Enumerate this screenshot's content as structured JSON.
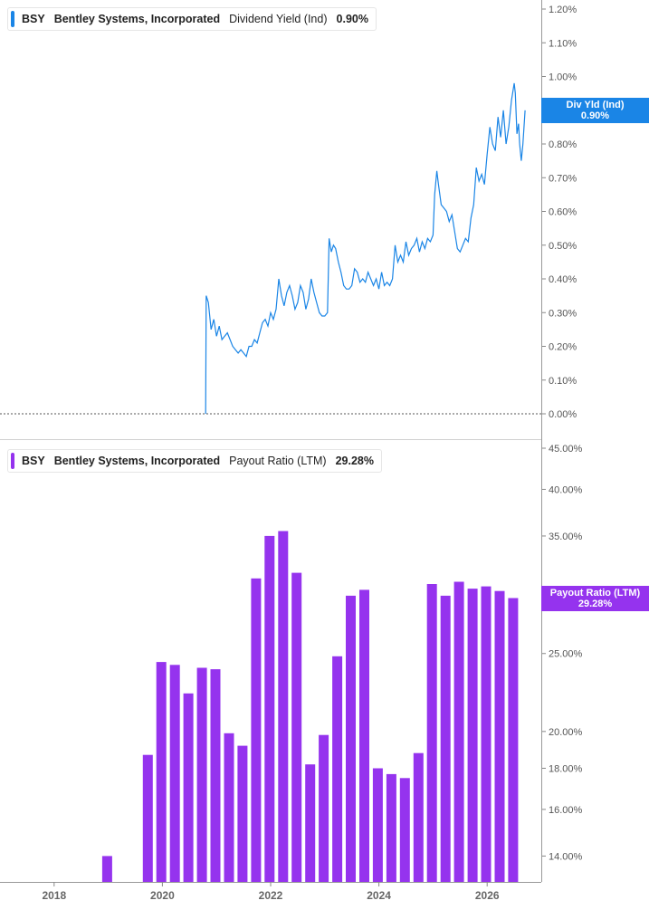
{
  "legends": {
    "top": {
      "ticker": "BSY",
      "name": "Bentley Systems, Incorporated",
      "metric": "Dividend Yield (Ind)",
      "value": "0.90%"
    },
    "bottom": {
      "ticker": "BSY",
      "name": "Bentley Systems, Incorporated",
      "metric": "Payout Ratio (LTM)",
      "value": "29.28%"
    }
  },
  "tags": {
    "top": {
      "label": "Div Yld (Ind)",
      "value": "0.90%"
    },
    "bottom": {
      "label": "Payout Ratio (LTM)",
      "value": "29.28%"
    }
  },
  "colors": {
    "line": "#1a85e6",
    "bars": "#9533ee",
    "axis": "#555555",
    "grid_zero": "#555555"
  },
  "chart_data": [
    {
      "type": "line",
      "series": [
        {
          "name": "Dividend Yield (Ind)",
          "x": [
            2020.8,
            2020.81,
            2020.85,
            2020.9,
            2020.95,
            2021.0,
            2021.05,
            2021.1,
            2021.15,
            2021.2,
            2021.25,
            2021.3,
            2021.35,
            2021.4,
            2021.45,
            2021.5,
            2021.55,
            2021.6,
            2021.65,
            2021.7,
            2021.75,
            2021.8,
            2021.85,
            2021.9,
            2021.95,
            2022.0,
            2022.05,
            2022.1,
            2022.15,
            2022.2,
            2022.25,
            2022.3,
            2022.35,
            2022.4,
            2022.45,
            2022.5,
            2022.55,
            2022.6,
            2022.65,
            2022.7,
            2022.75,
            2022.8,
            2022.85,
            2022.9,
            2022.95,
            2023.0,
            2023.05,
            2023.08,
            2023.12,
            2023.16,
            2023.2,
            2023.25,
            2023.3,
            2023.35,
            2023.4,
            2023.45,
            2023.5,
            2023.55,
            2023.6,
            2023.65,
            2023.7,
            2023.75,
            2023.8,
            2023.85,
            2023.9,
            2023.95,
            2024.0,
            2024.05,
            2024.1,
            2024.15,
            2024.2,
            2024.25,
            2024.3,
            2024.35,
            2024.4,
            2024.45,
            2024.5,
            2024.55,
            2024.6,
            2024.65,
            2024.7,
            2024.75,
            2024.8,
            2024.85,
            2024.9,
            2024.95,
            2025.0,
            2025.03,
            2025.07,
            2025.1,
            2025.15,
            2025.2,
            2025.25,
            2025.3,
            2025.35,
            2025.4,
            2025.45,
            2025.5,
            2025.55,
            2025.6,
            2025.65,
            2025.7,
            2025.75,
            2025.8,
            2025.85,
            2025.9,
            2025.95,
            2026.0,
            2026.05,
            2026.1,
            2026.15,
            2026.2,
            2026.25,
            2026.3,
            2026.35,
            2026.4,
            2026.45,
            2026.5,
            2026.52,
            2026.55,
            2026.58,
            2026.6,
            2026.63,
            2026.66,
            2026.7
          ],
          "values": [
            0.0,
            0.35,
            0.33,
            0.25,
            0.28,
            0.23,
            0.26,
            0.22,
            0.23,
            0.24,
            0.22,
            0.2,
            0.19,
            0.18,
            0.19,
            0.18,
            0.17,
            0.2,
            0.2,
            0.22,
            0.21,
            0.24,
            0.27,
            0.28,
            0.26,
            0.3,
            0.28,
            0.31,
            0.4,
            0.35,
            0.32,
            0.36,
            0.38,
            0.35,
            0.31,
            0.33,
            0.38,
            0.36,
            0.31,
            0.34,
            0.4,
            0.36,
            0.33,
            0.3,
            0.29,
            0.29,
            0.3,
            0.52,
            0.48,
            0.5,
            0.49,
            0.45,
            0.42,
            0.38,
            0.37,
            0.37,
            0.38,
            0.43,
            0.42,
            0.39,
            0.4,
            0.39,
            0.42,
            0.4,
            0.38,
            0.4,
            0.37,
            0.42,
            0.38,
            0.39,
            0.38,
            0.4,
            0.5,
            0.45,
            0.47,
            0.45,
            0.51,
            0.47,
            0.49,
            0.5,
            0.52,
            0.48,
            0.51,
            0.49,
            0.52,
            0.51,
            0.53,
            0.65,
            0.72,
            0.68,
            0.62,
            0.61,
            0.6,
            0.57,
            0.59,
            0.54,
            0.49,
            0.48,
            0.5,
            0.52,
            0.51,
            0.58,
            0.62,
            0.73,
            0.69,
            0.71,
            0.68,
            0.77,
            0.85,
            0.8,
            0.78,
            0.88,
            0.82,
            0.9,
            0.8,
            0.85,
            0.93,
            0.98,
            0.95,
            0.83,
            0.86,
            0.8,
            0.75,
            0.8,
            0.9
          ]
        }
      ],
      "xlim": [
        2017,
        2027
      ],
      "ylim": [
        0,
        1.2
      ],
      "y_ticks": [
        "0.00%",
        "0.10%",
        "0.20%",
        "0.30%",
        "0.40%",
        "0.50%",
        "0.60%",
        "0.70%",
        "0.80%",
        "1.00%",
        "1.10%",
        "1.20%"
      ],
      "y_tick_values": [
        0,
        0.1,
        0.2,
        0.3,
        0.4,
        0.5,
        0.6,
        0.7,
        0.8,
        1.0,
        1.1,
        1.2
      ],
      "grid": false
    },
    {
      "type": "bar",
      "series": [
        {
          "name": "Payout Ratio (LTM)",
          "x": [
            2018.98,
            2019.73,
            2019.98,
            2020.23,
            2020.48,
            2020.73,
            2020.98,
            2021.23,
            2021.48,
            2021.73,
            2021.98,
            2022.23,
            2022.48,
            2022.73,
            2022.98,
            2023.23,
            2023.48,
            2023.73,
            2023.98,
            2024.23,
            2024.48,
            2024.73,
            2024.98,
            2025.23,
            2025.48,
            2025.73,
            2025.98,
            2026.23,
            2026.48
          ],
          "values": [
            14.0,
            18.7,
            24.4,
            24.2,
            22.3,
            24.0,
            23.9,
            19.9,
            19.2,
            31.0,
            35.0,
            35.5,
            31.5,
            18.2,
            19.8,
            24.8,
            29.5,
            30.0,
            18.0,
            17.7,
            17.5,
            18.8,
            30.5,
            29.5,
            30.7,
            30.1,
            30.3,
            29.9,
            29.3
          ]
        }
      ],
      "xlim": [
        2017,
        2027
      ],
      "ylim": [
        13.0,
        45.0
      ],
      "scale": "log",
      "x_ticks": [
        "2018",
        "2020",
        "2022",
        "2024",
        "2026"
      ],
      "x_tick_values": [
        2018,
        2020,
        2022,
        2024,
        2026
      ],
      "y_ticks": [
        "14.00%",
        "16.00%",
        "18.00%",
        "20.00%",
        "25.00%",
        "35.00%",
        "40.00%",
        "45.00%"
      ],
      "y_tick_values": [
        14,
        16,
        18,
        20,
        25,
        35,
        40,
        45
      ],
      "grid": false
    }
  ]
}
